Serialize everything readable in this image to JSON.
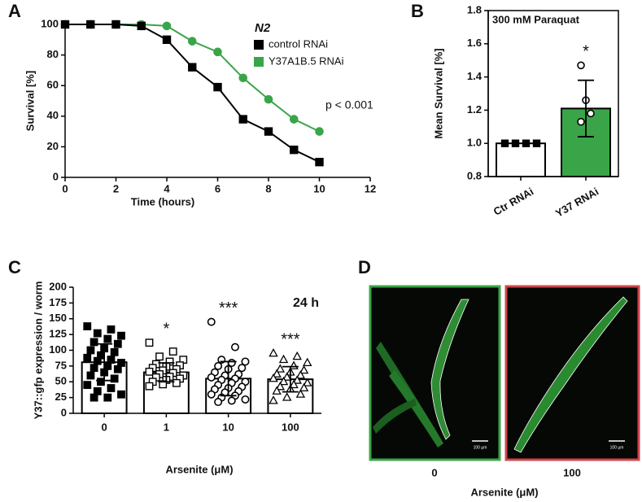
{
  "chart_data": [
    {
      "type": "line",
      "panel_label": "A",
      "xlabel": "Time (hours)",
      "ylabel": "Survival [%]",
      "legend_title": "N2",
      "annotation": "p < 0.001",
      "x": [
        0,
        1,
        2,
        3,
        4,
        5,
        6,
        7,
        8,
        9,
        10
      ],
      "series": [
        {
          "name": "control RNAi",
          "color": "#000000",
          "marker": "square",
          "values": [
            100,
            100,
            100,
            99,
            90,
            72,
            59,
            38,
            30,
            18,
            10
          ]
        },
        {
          "name": "Y37A1B.5 RNAi",
          "color": "#3aa548",
          "marker": "circle",
          "values": [
            100,
            100,
            100,
            100,
            99,
            89,
            82,
            65,
            51,
            38,
            30
          ]
        }
      ],
      "xlim": [
        0,
        12
      ],
      "xticks": [
        0,
        2,
        4,
        6,
        8,
        10,
        12
      ],
      "ylim": [
        0,
        100
      ],
      "yticks": [
        0,
        20,
        40,
        60,
        80,
        100
      ]
    },
    {
      "type": "bar",
      "panel_label": "B",
      "title": "300 mM Paraquat",
      "ylabel": "Mean Survival [%]",
      "categories": [
        "Ctr RNAi",
        "Y37 RNAi"
      ],
      "values": [
        1,
        1.21
      ],
      "errors": [
        null,
        0.17
      ],
      "colors": [
        "#ffffff",
        "#3aa548"
      ],
      "markers": [
        "square-filled",
        "circle-open"
      ],
      "points": [
        [
          1,
          1,
          1,
          1
        ],
        [
          1.47,
          1.26,
          1.18,
          1.13
        ]
      ],
      "annotations": [
        null,
        "*"
      ],
      "ylim": [
        0.8,
        1.8
      ],
      "yticks": [
        0.8,
        {
          "value": 1,
          "label": "1.0"
        },
        1.2,
        1.4,
        1.6,
        1.8
      ]
    },
    {
      "type": "bar",
      "panel_label": "C",
      "title": "24 h",
      "xlabel": "Arsenite (μM)",
      "ylabel": "Y37::gfp expression / worm",
      "categories": [
        "0",
        "1",
        "10",
        "100"
      ],
      "values": [
        81,
        65,
        55,
        54
      ],
      "errors": [
        29,
        15,
        27,
        20
      ],
      "colors": [
        "#ffffff",
        "#ffffff",
        "#ffffff",
        "#ffffff"
      ],
      "markers": [
        "square-filled",
        "square-open",
        "circle-open",
        "triangle-open"
      ],
      "points": [
        [
          138,
          133,
          127,
          123,
          118,
          113,
          110,
          103,
          100,
          97,
          92,
          88,
          85,
          83,
          80,
          75,
          72,
          70,
          65,
          60,
          55,
          50,
          45,
          40,
          35,
          30,
          25,
          25
        ],
        [
          112,
          98,
          90,
          85,
          82,
          78,
          76,
          74,
          72,
          70,
          68,
          66,
          64,
          62,
          60,
          58,
          57,
          55,
          53,
          50,
          48,
          46,
          43
        ],
        [
          145,
          105,
          85,
          82,
          80,
          75,
          72,
          70,
          65,
          62,
          60,
          57,
          55,
          53,
          50,
          48,
          45,
          42,
          40,
          38,
          35,
          33,
          30,
          28,
          25,
          22,
          20,
          18
        ],
        [
          95,
          90,
          85,
          80,
          75,
          70,
          68,
          65,
          62,
          60,
          57,
          55,
          52,
          50,
          48,
          45,
          42,
          40,
          38,
          35,
          30,
          25,
          20
        ]
      ],
      "annotations": [
        null,
        "*",
        "***",
        "***"
      ],
      "ylim": [
        0,
        200
      ],
      "yticks": [
        0,
        25,
        50,
        75,
        100,
        125,
        150,
        175,
        200
      ]
    }
  ],
  "figure_d": {
    "panel_label": "D",
    "xlabel": "Arsenite (μM)",
    "images": [
      {
        "caption": "0",
        "scale_bar": "100 µm"
      },
      {
        "caption": "100",
        "scale_bar": "100 µm"
      }
    ]
  }
}
